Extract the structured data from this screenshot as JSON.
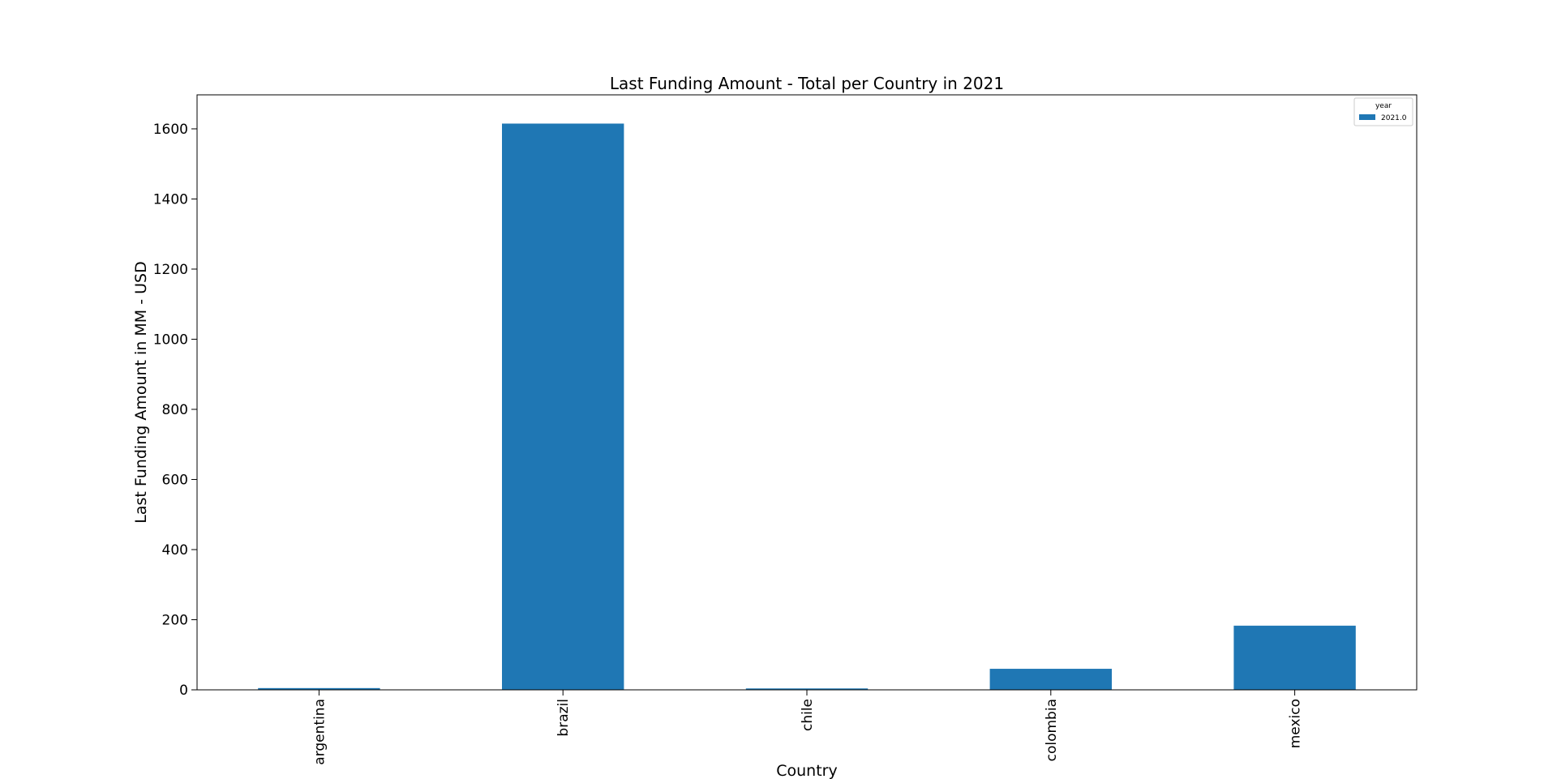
{
  "chart_data": {
    "type": "bar",
    "title": "Last Funding Amount - Total  per Country in 2021",
    "xlabel": "Country",
    "ylabel": "Last Funding Amount in MM - USD",
    "categories": [
      "argentina",
      "brazil",
      "chile",
      "colombia",
      "mexico"
    ],
    "series": [
      {
        "name": "2021.0",
        "values": [
          5,
          1615,
          4,
          60,
          183
        ]
      }
    ],
    "legend": {
      "title": "year",
      "placement": "top-right"
    },
    "ylim": [
      0,
      1697
    ],
    "yticks": [
      0,
      200,
      400,
      600,
      800,
      1000,
      1200,
      1400,
      1600
    ],
    "grid": false,
    "bar_color": "#1f77b4",
    "tick_label_rotation": "vertical"
  }
}
